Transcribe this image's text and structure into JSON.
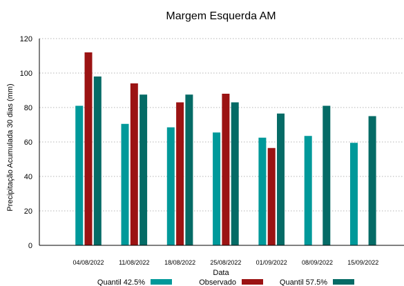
{
  "chart_data": {
    "type": "bar",
    "title": "Margem Esquerda AM",
    "xlabel": "Data",
    "ylabel": "Precipitação Acumulada 30 dias (mm)",
    "ylim": [
      0,
      120
    ],
    "yticks": [
      0,
      20,
      40,
      60,
      80,
      100,
      120
    ],
    "grid": true,
    "legend_position": "bottom",
    "categories": [
      "04/08/2022",
      "11/08/2022",
      "18/08/2022",
      "25/08/2022",
      "01/09/2022",
      "08/09/2022",
      "15/09/2022"
    ],
    "series": [
      {
        "name": "Quantil 42.5%",
        "color": "#00999a",
        "values": [
          81,
          70.5,
          68.5,
          65.5,
          62.5,
          63.5,
          59.5
        ]
      },
      {
        "name": "Observado",
        "color": "#9b1313",
        "values": [
          112,
          94,
          83,
          88,
          56.5,
          null,
          null
        ]
      },
      {
        "name": "Quantil 57.5%",
        "color": "#056b66",
        "values": [
          98,
          87.5,
          87.5,
          83,
          76.5,
          81,
          75
        ]
      }
    ]
  }
}
